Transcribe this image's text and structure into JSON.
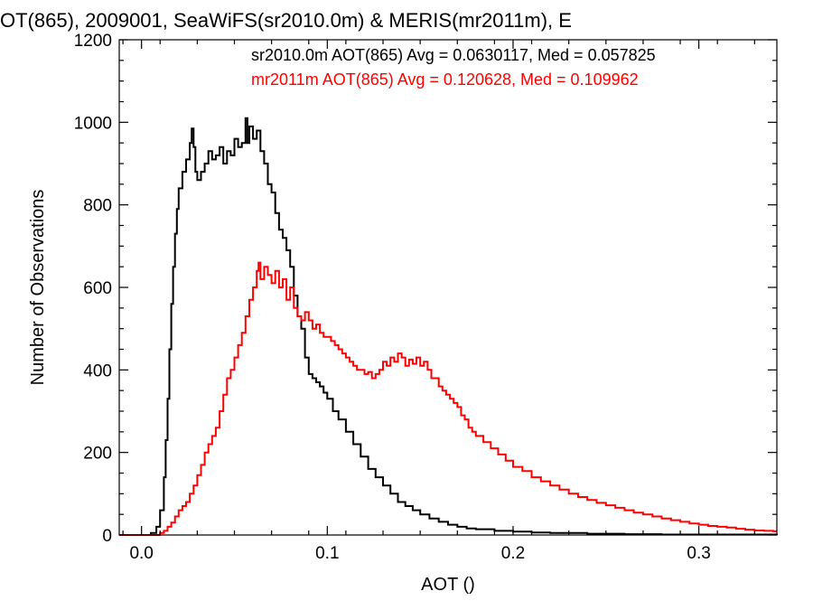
{
  "chart_data": {
    "type": "line",
    "title": "OT(865), 2009001, SeaWiFS(sr2010.0m) & MERIS(mr2011m), E",
    "xlabel": "AOT ()",
    "ylabel": "Number of Observations",
    "xlim": [
      -0.012,
      0.342
    ],
    "ylim": [
      0,
      1200
    ],
    "x_ticks": [
      0.0,
      0.1,
      0.2,
      0.3
    ],
    "x_tick_labels": [
      "0.0",
      "0.1",
      "0.2",
      "0.3"
    ],
    "y_ticks": [
      0,
      200,
      400,
      600,
      800,
      1000,
      1200
    ],
    "y_tick_labels": [
      "0",
      "200",
      "400",
      "600",
      "800",
      "1000",
      "1200"
    ],
    "grid": false,
    "legend_position": "top-right",
    "series": [
      {
        "name": "sr2010.0m AOT(865) Avg = 0.0630117, Med = 0.057825",
        "color": "#000000",
        "points": [
          [
            -0.012,
            0
          ],
          [
            0.0,
            0
          ],
          [
            0.005,
            5
          ],
          [
            0.008,
            20
          ],
          [
            0.01,
            60
          ],
          [
            0.012,
            140
          ],
          [
            0.013,
            230
          ],
          [
            0.014,
            330
          ],
          [
            0.015,
            450
          ],
          [
            0.016,
            560
          ],
          [
            0.017,
            650
          ],
          [
            0.018,
            730
          ],
          [
            0.019,
            790
          ],
          [
            0.02,
            840
          ],
          [
            0.022,
            880
          ],
          [
            0.024,
            910
          ],
          [
            0.026,
            950
          ],
          [
            0.027,
            985
          ],
          [
            0.028,
            940
          ],
          [
            0.029,
            880
          ],
          [
            0.03,
            860
          ],
          [
            0.032,
            880
          ],
          [
            0.034,
            900
          ],
          [
            0.036,
            930
          ],
          [
            0.038,
            910
          ],
          [
            0.04,
            920
          ],
          [
            0.042,
            940
          ],
          [
            0.044,
            900
          ],
          [
            0.046,
            930
          ],
          [
            0.048,
            920
          ],
          [
            0.05,
            960
          ],
          [
            0.052,
            940
          ],
          [
            0.054,
            950
          ],
          [
            0.056,
            1010
          ],
          [
            0.057,
            950
          ],
          [
            0.058,
            990
          ],
          [
            0.06,
            960
          ],
          [
            0.062,
            980
          ],
          [
            0.064,
            930
          ],
          [
            0.066,
            900
          ],
          [
            0.068,
            850
          ],
          [
            0.07,
            830
          ],
          [
            0.072,
            780
          ],
          [
            0.074,
            740
          ],
          [
            0.076,
            720
          ],
          [
            0.078,
            690
          ],
          [
            0.08,
            650
          ],
          [
            0.082,
            580
          ],
          [
            0.084,
            530
          ],
          [
            0.086,
            500
          ],
          [
            0.088,
            430
          ],
          [
            0.09,
            390
          ],
          [
            0.092,
            380
          ],
          [
            0.094,
            370
          ],
          [
            0.096,
            360
          ],
          [
            0.098,
            345
          ],
          [
            0.1,
            330
          ],
          [
            0.103,
            300
          ],
          [
            0.106,
            280
          ],
          [
            0.11,
            250
          ],
          [
            0.114,
            220
          ],
          [
            0.118,
            190
          ],
          [
            0.122,
            160
          ],
          [
            0.126,
            140
          ],
          [
            0.13,
            120
          ],
          [
            0.134,
            100
          ],
          [
            0.138,
            80
          ],
          [
            0.142,
            70
          ],
          [
            0.146,
            60
          ],
          [
            0.15,
            50
          ],
          [
            0.155,
            40
          ],
          [
            0.16,
            32
          ],
          [
            0.165,
            25
          ],
          [
            0.17,
            20
          ],
          [
            0.175,
            16
          ],
          [
            0.18,
            14
          ],
          [
            0.19,
            10
          ],
          [
            0.2,
            8
          ],
          [
            0.21,
            6
          ],
          [
            0.22,
            5
          ],
          [
            0.24,
            3
          ],
          [
            0.26,
            2
          ],
          [
            0.28,
            1
          ],
          [
            0.3,
            1
          ],
          [
            0.342,
            0
          ]
        ]
      },
      {
        "name": "mr2011m AOT(865) Avg = 0.120628, Med = 0.109962",
        "color": "#ff0000",
        "points": [
          [
            -0.012,
            0
          ],
          [
            0.008,
            0
          ],
          [
            0.01,
            5
          ],
          [
            0.012,
            10
          ],
          [
            0.014,
            20
          ],
          [
            0.016,
            30
          ],
          [
            0.018,
            45
          ],
          [
            0.02,
            60
          ],
          [
            0.022,
            70
          ],
          [
            0.024,
            80
          ],
          [
            0.026,
            100
          ],
          [
            0.028,
            120
          ],
          [
            0.03,
            145
          ],
          [
            0.032,
            170
          ],
          [
            0.034,
            200
          ],
          [
            0.036,
            220
          ],
          [
            0.038,
            240
          ],
          [
            0.04,
            260
          ],
          [
            0.042,
            300
          ],
          [
            0.044,
            340
          ],
          [
            0.046,
            380
          ],
          [
            0.048,
            400
          ],
          [
            0.05,
            430
          ],
          [
            0.052,
            460
          ],
          [
            0.054,
            490
          ],
          [
            0.056,
            530
          ],
          [
            0.058,
            570
          ],
          [
            0.06,
            600
          ],
          [
            0.062,
            640
          ],
          [
            0.063,
            660
          ],
          [
            0.064,
            620
          ],
          [
            0.066,
            650
          ],
          [
            0.068,
            630
          ],
          [
            0.07,
            610
          ],
          [
            0.072,
            640
          ],
          [
            0.074,
            600
          ],
          [
            0.076,
            620
          ],
          [
            0.078,
            570
          ],
          [
            0.08,
            600
          ],
          [
            0.082,
            550
          ],
          [
            0.084,
            530
          ],
          [
            0.086,
            520
          ],
          [
            0.088,
            540
          ],
          [
            0.09,
            520
          ],
          [
            0.092,
            500
          ],
          [
            0.094,
            510
          ],
          [
            0.096,
            490
          ],
          [
            0.098,
            480
          ],
          [
            0.1,
            480
          ],
          [
            0.102,
            470
          ],
          [
            0.104,
            460
          ],
          [
            0.106,
            450
          ],
          [
            0.108,
            440
          ],
          [
            0.11,
            430
          ],
          [
            0.112,
            420
          ],
          [
            0.114,
            410
          ],
          [
            0.116,
            400
          ],
          [
            0.118,
            400
          ],
          [
            0.12,
            390
          ],
          [
            0.122,
            395
          ],
          [
            0.124,
            380
          ],
          [
            0.126,
            390
          ],
          [
            0.128,
            400
          ],
          [
            0.13,
            420
          ],
          [
            0.132,
            410
          ],
          [
            0.134,
            430
          ],
          [
            0.136,
            420
          ],
          [
            0.138,
            440
          ],
          [
            0.14,
            430
          ],
          [
            0.142,
            410
          ],
          [
            0.144,
            425
          ],
          [
            0.146,
            415
          ],
          [
            0.148,
            430
          ],
          [
            0.15,
            410
          ],
          [
            0.152,
            420
          ],
          [
            0.154,
            400
          ],
          [
            0.156,
            380
          ],
          [
            0.158,
            380
          ],
          [
            0.16,
            360
          ],
          [
            0.162,
            350
          ],
          [
            0.164,
            340
          ],
          [
            0.166,
            330
          ],
          [
            0.168,
            320
          ],
          [
            0.17,
            310
          ],
          [
            0.172,
            290
          ],
          [
            0.174,
            280
          ],
          [
            0.176,
            260
          ],
          [
            0.178,
            250
          ],
          [
            0.18,
            240
          ],
          [
            0.184,
            225
          ],
          [
            0.188,
            210
          ],
          [
            0.192,
            195
          ],
          [
            0.196,
            180
          ],
          [
            0.2,
            165
          ],
          [
            0.205,
            155
          ],
          [
            0.21,
            140
          ],
          [
            0.215,
            130
          ],
          [
            0.22,
            120
          ],
          [
            0.225,
            110
          ],
          [
            0.23,
            100
          ],
          [
            0.235,
            92
          ],
          [
            0.24,
            85
          ],
          [
            0.245,
            78
          ],
          [
            0.25,
            72
          ],
          [
            0.255,
            66
          ],
          [
            0.26,
            60
          ],
          [
            0.265,
            54
          ],
          [
            0.27,
            50
          ],
          [
            0.275,
            45
          ],
          [
            0.28,
            40
          ],
          [
            0.285,
            36
          ],
          [
            0.29,
            32
          ],
          [
            0.295,
            28
          ],
          [
            0.3,
            25
          ],
          [
            0.305,
            22
          ],
          [
            0.31,
            20
          ],
          [
            0.315,
            18
          ],
          [
            0.32,
            15
          ],
          [
            0.325,
            13
          ],
          [
            0.33,
            11
          ],
          [
            0.335,
            10
          ],
          [
            0.34,
            9
          ]
        ]
      }
    ]
  }
}
